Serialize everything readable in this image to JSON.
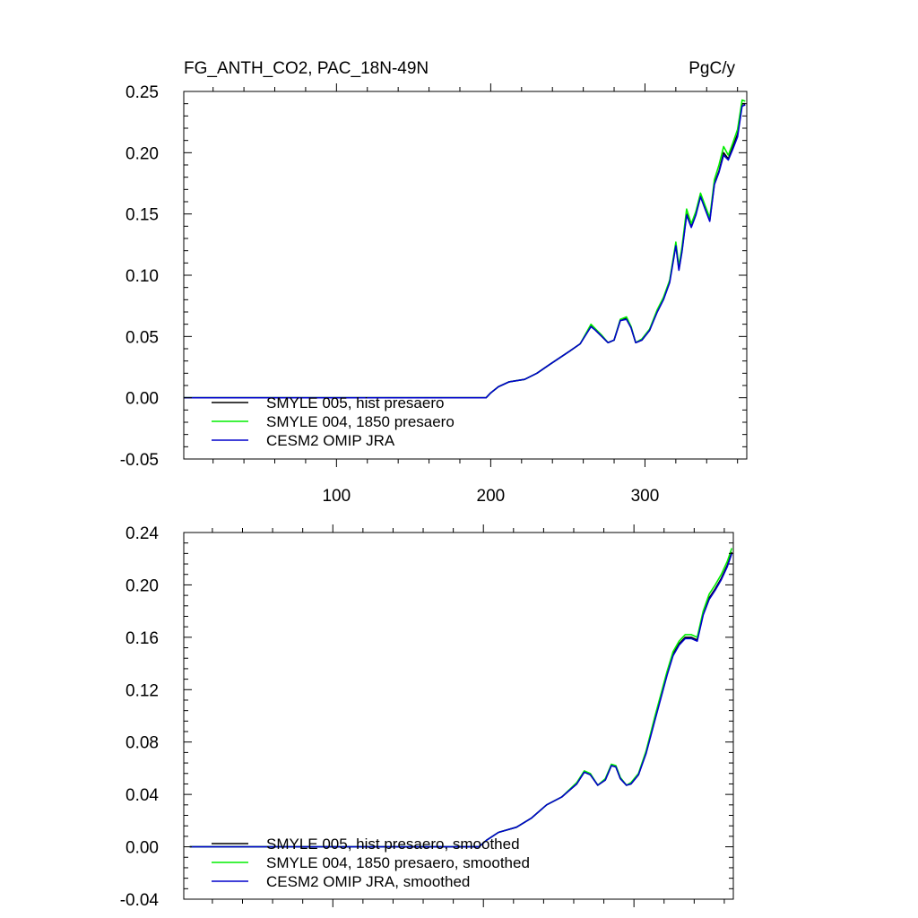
{
  "figure": {
    "top_title_left": "FG_ANTH_CO2, PAC_18N-49N",
    "top_title_right": "PgC/y"
  },
  "chart_data": [
    {
      "type": "line",
      "title": "FG_ANTH_CO2, PAC_18N-49N",
      "units": "PgC/y",
      "xlim": [
        1,
        366
      ],
      "ylim": [
        -0.05,
        0.25
      ],
      "xticks": [
        100,
        200,
        300
      ],
      "xtick_labels": [
        "100",
        "200",
        "300"
      ],
      "yticks": [
        -0.05,
        0.0,
        0.05,
        0.1,
        0.15,
        0.2,
        0.25
      ],
      "ytick_labels": [
        "-0.05",
        "0.00",
        "0.05",
        "0.10",
        "0.15",
        "0.20",
        "0.25"
      ],
      "legend": {
        "position": "lower-left"
      },
      "x": [
        1,
        197,
        200,
        205,
        212,
        222,
        230,
        238,
        250,
        258,
        265,
        268,
        272,
        276,
        280,
        284,
        288,
        291,
        294,
        298,
        303,
        308,
        312,
        316,
        320,
        322,
        324,
        327,
        330,
        333,
        336,
        339,
        342,
        345,
        348,
        351,
        354,
        357,
        360,
        363,
        365
      ],
      "series": [
        {
          "name": "SMYLE 005, hist presaero",
          "color": "#000000",
          "values": [
            0.0,
            0.0,
            0.004,
            0.009,
            0.013,
            0.015,
            0.02,
            0.027,
            0.037,
            0.044,
            0.059,
            0.055,
            0.05,
            0.045,
            0.047,
            0.063,
            0.065,
            0.057,
            0.045,
            0.047,
            0.055,
            0.071,
            0.081,
            0.095,
            0.125,
            0.105,
            0.12,
            0.15,
            0.14,
            0.15,
            0.165,
            0.155,
            0.145,
            0.175,
            0.185,
            0.2,
            0.195,
            0.205,
            0.215,
            0.24,
            0.24
          ]
        },
        {
          "name": "SMYLE 004, 1850 presaero",
          "color": "#00ee00",
          "values": [
            0.0,
            0.0,
            0.004,
            0.009,
            0.013,
            0.015,
            0.02,
            0.027,
            0.037,
            0.044,
            0.06,
            0.056,
            0.051,
            0.045,
            0.047,
            0.064,
            0.066,
            0.058,
            0.045,
            0.048,
            0.056,
            0.072,
            0.082,
            0.096,
            0.127,
            0.107,
            0.123,
            0.154,
            0.142,
            0.152,
            0.167,
            0.157,
            0.147,
            0.178,
            0.19,
            0.205,
            0.198,
            0.208,
            0.219,
            0.243,
            0.242
          ]
        },
        {
          "name": "CESM2 OMIP JRA",
          "color": "#0000cc",
          "values": [
            0.0,
            0.0,
            0.004,
            0.009,
            0.013,
            0.015,
            0.02,
            0.027,
            0.037,
            0.044,
            0.058,
            0.055,
            0.05,
            0.045,
            0.047,
            0.063,
            0.064,
            0.057,
            0.045,
            0.047,
            0.055,
            0.07,
            0.08,
            0.094,
            0.124,
            0.104,
            0.119,
            0.149,
            0.139,
            0.149,
            0.164,
            0.154,
            0.144,
            0.174,
            0.184,
            0.198,
            0.194,
            0.203,
            0.213,
            0.238,
            0.239
          ]
        }
      ]
    },
    {
      "type": "line",
      "xlim": [
        1,
        366
      ],
      "ylim": [
        -0.04,
        0.24
      ],
      "xticks": [
        100,
        200,
        300
      ],
      "yticks": [
        -0.04,
        0.0,
        0.04,
        0.08,
        0.12,
        0.16,
        0.2,
        0.24
      ],
      "ytick_labels": [
        "-0.04",
        "0.00",
        "0.04",
        "0.08",
        "0.12",
        "0.16",
        "0.20",
        "0.24"
      ],
      "legend": {
        "position": "lower-left"
      },
      "x": [
        5,
        197,
        202,
        210,
        222,
        232,
        242,
        252,
        262,
        267,
        271,
        276,
        281,
        285,
        288,
        291,
        295,
        298,
        303,
        308,
        314,
        318,
        322,
        326,
        330,
        334,
        338,
        342,
        346,
        350,
        354,
        358,
        362,
        365
      ],
      "series": [
        {
          "name": "SMYLE 005, hist presaero, smoothed",
          "color": "#000000",
          "values": [
            0.0,
            0.0,
            0.005,
            0.011,
            0.015,
            0.022,
            0.032,
            0.038,
            0.048,
            0.057,
            0.055,
            0.047,
            0.051,
            0.062,
            0.061,
            0.052,
            0.047,
            0.048,
            0.055,
            0.072,
            0.098,
            0.115,
            0.132,
            0.147,
            0.155,
            0.16,
            0.16,
            0.158,
            0.178,
            0.19,
            0.197,
            0.205,
            0.215,
            0.225
          ]
        },
        {
          "name": "SMYLE 004, 1850 presaero, smoothed",
          "color": "#00ee00",
          "values": [
            0.0,
            0.0,
            0.005,
            0.011,
            0.015,
            0.022,
            0.032,
            0.038,
            0.049,
            0.058,
            0.056,
            0.047,
            0.052,
            0.063,
            0.062,
            0.053,
            0.047,
            0.049,
            0.056,
            0.073,
            0.1,
            0.117,
            0.134,
            0.149,
            0.157,
            0.162,
            0.162,
            0.16,
            0.18,
            0.193,
            0.2,
            0.208,
            0.218,
            0.228
          ]
        },
        {
          "name": "CESM2 OMIP JRA, smoothed",
          "color": "#0000cc",
          "values": [
            0.0,
            0.0,
            0.005,
            0.011,
            0.015,
            0.022,
            0.032,
            0.038,
            0.048,
            0.057,
            0.055,
            0.047,
            0.051,
            0.062,
            0.061,
            0.052,
            0.047,
            0.048,
            0.055,
            0.071,
            0.097,
            0.114,
            0.131,
            0.146,
            0.154,
            0.159,
            0.159,
            0.157,
            0.177,
            0.189,
            0.196,
            0.204,
            0.214,
            0.224
          ]
        }
      ]
    }
  ]
}
